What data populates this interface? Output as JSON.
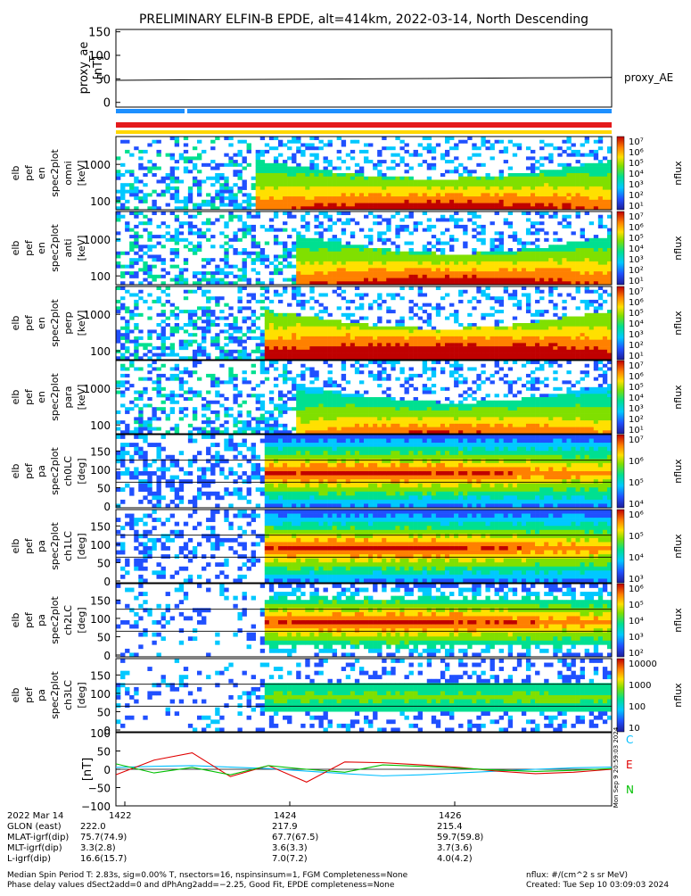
{
  "title": "PRELIMINARY ELFIN-B EPDE, alt=414km, 2022-03-14, North Descending",
  "colors": {
    "blue": "#1e90ff",
    "red": "#e41a1c",
    "yellow": "#ffd700",
    "trace_c": "#00bfff",
    "trace_e": "#e00000",
    "trace_n": "#00c000"
  },
  "chart_data": [
    {
      "type": "line",
      "panel": "proxy_ae",
      "ylabel": "proxy_ae\n[nT]",
      "yticks": [
        "150",
        "100",
        "50",
        "0"
      ],
      "ylim": [
        -10,
        155
      ],
      "series": [
        {
          "name": "proxy_AE",
          "values": [
            47,
            48,
            49,
            50,
            51,
            52,
            53
          ]
        }
      ],
      "legend": "right"
    },
    {
      "type": "heatmap",
      "panel": "bars",
      "rows": [
        "blue",
        "red",
        "yellow"
      ]
    },
    {
      "type": "heatmap",
      "panel": "spectra",
      "panels": [
        {
          "ylabel": [
            "elb",
            "pef",
            "en",
            "spec2plot",
            "omni",
            "[keV]"
          ],
          "yticks": [
            "1000",
            "100"
          ],
          "cbar": [
            "10⁷",
            "10⁶",
            "10⁵",
            "10⁴",
            "10³",
            "10²",
            "10¹"
          ],
          "clabel": "nflux"
        },
        {
          "ylabel": [
            "elb",
            "pef",
            "en",
            "spec2plot",
            "anti",
            "[keV]"
          ],
          "yticks": [
            "1000",
            "100"
          ],
          "cbar": [
            "10⁷",
            "10⁶",
            "10⁵",
            "10⁴",
            "10³",
            "10²",
            "10¹"
          ],
          "clabel": "nflux"
        },
        {
          "ylabel": [
            "elb",
            "pef",
            "en",
            "spec2plot",
            "perp",
            "[keV]"
          ],
          "yticks": [
            "1000",
            "100"
          ],
          "cbar": [
            "10⁷",
            "10⁶",
            "10⁵",
            "10⁴",
            "10³",
            "10²",
            "10¹"
          ],
          "clabel": "nflux"
        },
        {
          "ylabel": [
            "elb",
            "pef",
            "en",
            "spec2plot",
            "para",
            "[keV]"
          ],
          "yticks": [
            "1000",
            "100"
          ],
          "cbar": [
            "10⁷",
            "10⁶",
            "10⁵",
            "10⁴",
            "10³",
            "10²",
            "10¹"
          ],
          "clabel": "nflux"
        }
      ]
    },
    {
      "type": "heatmap",
      "panel": "pitch_angle",
      "panels": [
        {
          "ylabel": [
            "elb",
            "pef",
            "pa",
            "spec2plot",
            "ch0LC",
            "[deg]"
          ],
          "yticks": [
            "150",
            "100",
            "50",
            "0"
          ],
          "cbar": [
            "10⁷",
            "10⁶",
            "10⁵",
            "10⁴"
          ],
          "clabel": "nflux"
        },
        {
          "ylabel": [
            "elb",
            "pef",
            "pa",
            "spec2plot",
            "ch1LC",
            "[deg]"
          ],
          "yticks": [
            "150",
            "100",
            "50",
            "0"
          ],
          "cbar": [
            "10⁶",
            "10⁵",
            "10⁴",
            "10³"
          ],
          "clabel": "nflux"
        },
        {
          "ylabel": [
            "elb",
            "pef",
            "pa",
            "spec2plot",
            "ch2LC",
            "[deg]"
          ],
          "yticks": [
            "150",
            "100",
            "50",
            "0"
          ],
          "cbar": [
            "10⁶",
            "10⁵",
            "10⁴",
            "10³",
            "10²"
          ],
          "clabel": "nflux"
        },
        {
          "ylabel": [
            "elb",
            "pef",
            "pa",
            "spec2plot",
            "ch3LC",
            "[deg]"
          ],
          "yticks": [
            "150",
            "100",
            "50",
            "0"
          ],
          "cbar": [
            "10000",
            "1000",
            "100",
            "10"
          ],
          "clabel": "nflux"
        }
      ]
    },
    {
      "type": "line",
      "panel": "magnetometer",
      "ylabel": "[nT]",
      "yticks": [
        "100",
        "50",
        "0",
        "−50",
        "−100"
      ],
      "ylim": [
        -100,
        100
      ],
      "series": [
        {
          "name": "C",
          "values": [
            5,
            8,
            10,
            6,
            2,
            -5,
            -12,
            -18,
            -15,
            -10,
            -5,
            0,
            4,
            6
          ]
        },
        {
          "name": "E",
          "values": [
            -15,
            25,
            45,
            -20,
            10,
            -35,
            20,
            18,
            12,
            5,
            -5,
            -12,
            -8,
            0
          ]
        },
        {
          "name": "N",
          "values": [
            15,
            -10,
            5,
            -15,
            10,
            0,
            -8,
            12,
            8,
            3,
            -2,
            -6,
            -3,
            2
          ]
        }
      ]
    }
  ],
  "footer": {
    "date_label": "2022 Mar 14",
    "times": [
      "1422",
      "1424",
      "1426"
    ],
    "rows": [
      {
        "label": "GLON (east)",
        "values": [
          "222.0",
          "217.9",
          "215.4"
        ]
      },
      {
        "label": "MLAT-igrf(dip)",
        "values": [
          "75.7(74.9)",
          "67.7(67.5)",
          "59.7(59.8)"
        ]
      },
      {
        "label": "MLT-igrf(dip)",
        "values": [
          "3.3(2.8)",
          "3.6(3.3)",
          "3.7(3.6)"
        ]
      },
      {
        "label": "L-igrf(dip)",
        "values": [
          "16.6(15.7)",
          "7.0(7.2)",
          "4.0(4.2)"
        ]
      }
    ],
    "note1": "Median Spin Period T: 2.83s, sig=0.00% T, nsectors=16, nspinsinsum=1, FGM Completeness=None",
    "note2": "Phase delay values dSect2add=0 and dPhAng2add=−2.25, Good Fit, EPDE completeness=None",
    "units": "nflux: #/(cm^2 s sr MeV)",
    "created": "Created: Tue Sep 10 03:09:03 2024",
    "stamp": "Mon Sep 9 20:59:03 2024"
  }
}
